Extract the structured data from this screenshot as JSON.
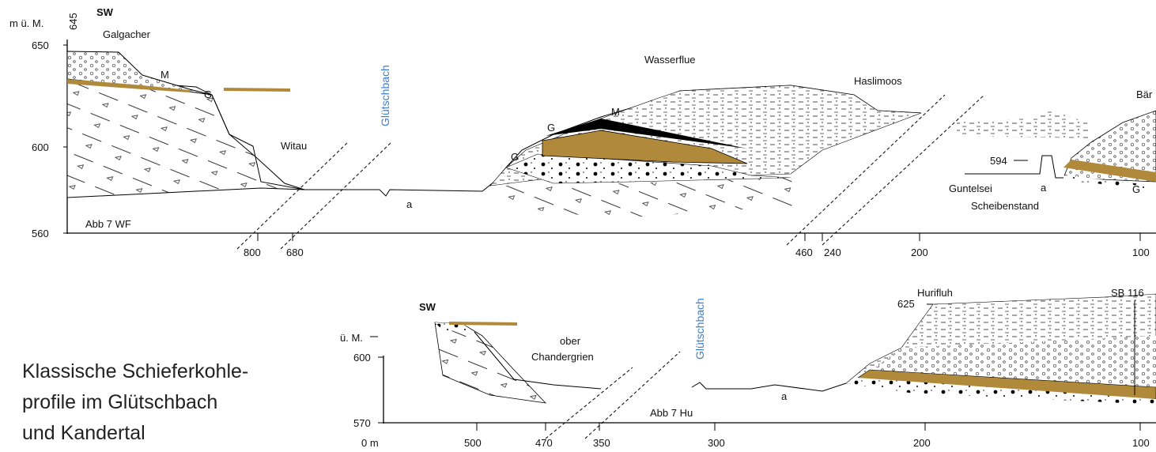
{
  "top_profile": {
    "unit": "m ü. M.",
    "elevation_label": "645",
    "direction": "SW",
    "places": {
      "galgacher": "Galgacher",
      "glutschbach": "Glütschbach",
      "witau": "Witau",
      "wasserflue": "Wasserflue",
      "haslimoos": "Haslimoos",
      "bar": "Bär",
      "guntelsei": "Guntelsei",
      "scheibenstand": "Scheibenstand"
    },
    "layer_labels": [
      "M",
      "G",
      "M",
      "G",
      "G",
      "a",
      "a",
      "G"
    ],
    "point_label": "594",
    "figure_ref": "Abb 7 WF",
    "y_ticks": [
      "650",
      "600",
      "560"
    ],
    "x_ticks": [
      "800",
      "680",
      "460",
      "240",
      "200",
      "100"
    ]
  },
  "bottom_profile": {
    "unit": "ü. M.",
    "direction": "SW",
    "places": {
      "ober": "ober",
      "chandergrien": "Chandergrien",
      "glutschbach": "Glütschbach",
      "hurifluh": "Hurifluh",
      "sb": "SB 116"
    },
    "elevation_label": "625",
    "layer_label": "a",
    "figure_ref": "Abb 7  Hu",
    "y_ticks": [
      "600",
      "570"
    ],
    "x_ticks": [
      "0 m",
      "500",
      "470",
      "350",
      "300",
      "200",
      "100"
    ]
  },
  "caption": [
    "Klassische Schieferkohle-",
    "profile im Glütschbach",
    "und Kandertal"
  ]
}
